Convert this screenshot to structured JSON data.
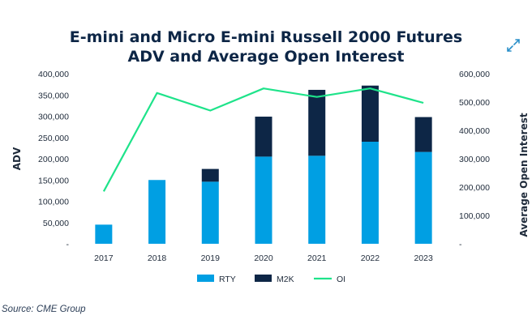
{
  "title_line1": "E-mini and Micro E-mini Russell 2000 Futures",
  "title_line2": "ADV and Average Open Interest",
  "source": "Source: CME Group",
  "expand_icon": "expand-icon",
  "colors": {
    "rty": "#009fe3",
    "m2k": "#0d2646",
    "oi": "#1ee38a",
    "title": "#0d2646",
    "axis": "#1e2a3a"
  },
  "chart_data": {
    "type": "bar",
    "stacked": true,
    "categories": [
      "2017",
      "2018",
      "2019",
      "2020",
      "2021",
      "2022",
      "2023"
    ],
    "series": [
      {
        "name": "RTY",
        "type": "bar",
        "axis": "left",
        "values": [
          45000,
          150000,
          146000,
          205000,
          207000,
          240000,
          216000
        ]
      },
      {
        "name": "M2K",
        "type": "bar",
        "axis": "left",
        "values": [
          0,
          0,
          30000,
          94000,
          155000,
          132000,
          82000
        ]
      },
      {
        "name": "OI",
        "type": "line",
        "axis": "right",
        "values": [
          185000,
          532000,
          470000,
          548000,
          518000,
          548000,
          497000
        ]
      }
    ],
    "ylabel": "ADV",
    "ylabel_right": "Average Open Interest",
    "ylim": [
      0,
      400000
    ],
    "ylim_right": [
      0,
      600000
    ],
    "yticks": [
      "400,000",
      "350,000",
      "300,000",
      "250,000",
      "200,000",
      "150,000",
      "100,000",
      "50,000",
      "-"
    ],
    "yticks_right": [
      "600,000",
      "500,000",
      "400,000",
      "300,000",
      "200,000",
      "100,000",
      "-"
    ],
    "legend": [
      "RTY",
      "M2K",
      "OI"
    ],
    "legend_position": "bottom",
    "grid": false
  }
}
